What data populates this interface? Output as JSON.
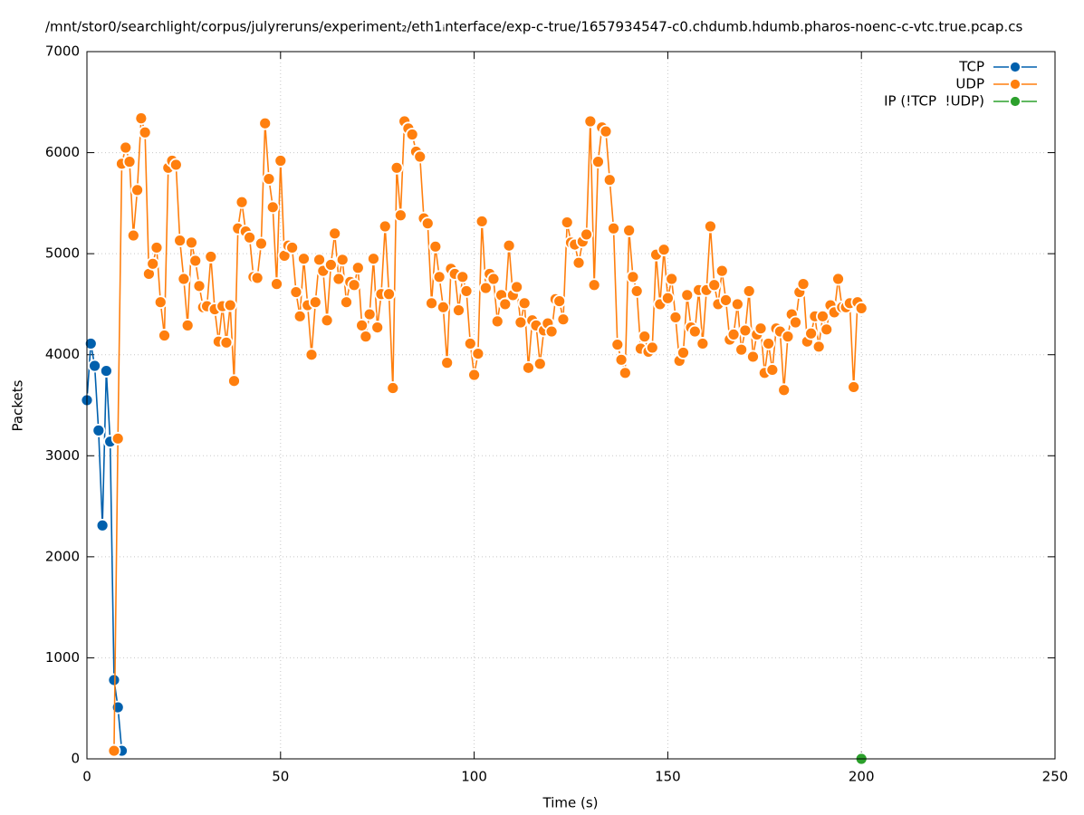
{
  "chart_data": {
    "type": "line",
    "title": "/mnt/stor0/searchlight/corpus/julyreruns/experiment₂/eth1ᵢnterface/exp-c-true/1657934547-c0.chdumb.hdumb.pharos-noenc-c-vtc.true.pcap.cs",
    "x_label": "Time (s)",
    "y_label": "Packets",
    "xlim": [
      0,
      250
    ],
    "xticks": [
      0,
      50,
      100,
      150,
      200,
      250
    ],
    "ylim": [
      0,
      7000
    ],
    "yticks": [
      0,
      1000,
      2000,
      3000,
      4000,
      5000,
      6000,
      7000
    ],
    "grid": true,
    "legend": "top-right",
    "series": [
      {
        "name": "TCP",
        "color": "#0060ad",
        "x": [
          0,
          1,
          2,
          3,
          4,
          5,
          6,
          7,
          8,
          9
        ],
        "values": [
          3550,
          4110,
          3890,
          3250,
          2310,
          3840,
          3140,
          780,
          510,
          80
        ]
      },
      {
        "name": "UDP",
        "color": "#ff7f0e",
        "x": [
          7,
          8,
          9,
          10,
          11,
          12,
          13,
          14,
          15,
          16,
          17,
          18,
          19,
          20,
          21,
          22,
          23,
          24,
          25,
          26,
          27,
          28,
          29,
          30,
          31,
          32,
          33,
          34,
          35,
          36,
          37,
          38,
          39,
          40,
          41,
          42,
          43,
          44,
          45,
          46,
          47,
          48,
          49,
          50,
          51,
          52,
          53,
          54,
          55,
          56,
          57,
          58,
          59,
          60,
          61,
          62,
          63,
          64,
          65,
          66,
          67,
          68,
          69,
          70,
          71,
          72,
          73,
          74,
          75,
          76,
          77,
          78,
          79,
          80,
          81,
          82,
          83,
          84,
          85,
          86,
          87,
          88,
          89,
          90,
          91,
          92,
          93,
          94,
          95,
          96,
          97,
          98,
          99,
          100,
          101,
          102,
          103,
          104,
          105,
          106,
          107,
          108,
          109,
          110,
          111,
          112,
          113,
          114,
          115,
          116,
          117,
          118,
          119,
          120,
          121,
          122,
          123,
          124,
          125,
          126,
          127,
          128,
          129,
          130,
          131,
          132,
          133,
          134,
          135,
          136,
          137,
          138,
          139,
          140,
          141,
          142,
          143,
          144,
          145,
          146,
          147,
          148,
          149,
          150,
          151,
          152,
          153,
          154,
          155,
          156,
          157,
          158,
          159,
          160,
          161,
          162,
          163,
          164,
          165,
          166,
          167,
          168,
          169,
          170,
          171,
          172,
          173,
          174,
          175,
          176,
          177,
          178,
          179,
          180,
          181,
          182,
          183,
          184,
          185,
          186,
          187,
          188,
          189,
          190,
          191,
          192,
          193,
          194,
          195,
          196,
          197,
          198,
          199,
          200
        ],
        "values": [
          80,
          3170,
          5890,
          6050,
          5910,
          5180,
          5630,
          6340,
          6200,
          4800,
          4900,
          5060,
          4520,
          4190,
          5850,
          5920,
          5880,
          5130,
          4750,
          4290,
          5110,
          4930,
          4680,
          4470,
          4480,
          4970,
          4450,
          4130,
          4480,
          4120,
          4490,
          3740,
          5250,
          5510,
          5220,
          5160,
          4770,
          4760,
          5100,
          6290,
          5740,
          5460,
          4700,
          5920,
          4980,
          5080,
          5060,
          4620,
          4380,
          4950,
          4490,
          4000,
          4520,
          4940,
          4830,
          4340,
          4890,
          5200,
          4750,
          4940,
          4520,
          4720,
          4690,
          4860,
          4290,
          4180,
          4400,
          4950,
          4270,
          4600,
          5270,
          4600,
          3670,
          5850,
          5380,
          6310,
          6240,
          6180,
          6010,
          5960,
          5350,
          5300,
          4510,
          5070,
          4770,
          4470,
          3920,
          4850,
          4800,
          4440,
          4770,
          4630,
          4110,
          3800,
          4010,
          5320,
          4660,
          4800,
          4750,
          4330,
          4590,
          4500,
          5080,
          4590,
          4670,
          4320,
          4510,
          3870,
          4340,
          4290,
          3910,
          4240,
          4310,
          4230,
          4550,
          4530,
          4350,
          5310,
          5110,
          5090,
          4910,
          5120,
          5190,
          6310,
          4690,
          5910,
          6250,
          6210,
          5730,
          5250,
          4100,
          3950,
          3820,
          5230,
          4770,
          4630,
          4060,
          4180,
          4030,
          4070,
          4990,
          4500,
          5040,
          4560,
          4750,
          4370,
          3940,
          4020,
          4590,
          4270,
          4230,
          4640,
          4110,
          4640,
          5270,
          4690,
          4500,
          4830,
          4540,
          4150,
          4200,
          4500,
          4050,
          4240,
          4630,
          3980,
          4200,
          4260,
          3820,
          4110,
          3850,
          4260,
          4230,
          3650,
          4180,
          4400,
          4320,
          4620,
          4700,
          4130,
          4210,
          4380,
          4080,
          4380,
          4250,
          4490,
          4420,
          4750,
          4470,
          4470,
          4510,
          3680,
          4520,
          4460
        ]
      },
      {
        "name": "IP (!TCP  !UDP)",
        "color": "#2ca02c",
        "x": [
          200
        ],
        "values": [
          0
        ]
      }
    ]
  }
}
